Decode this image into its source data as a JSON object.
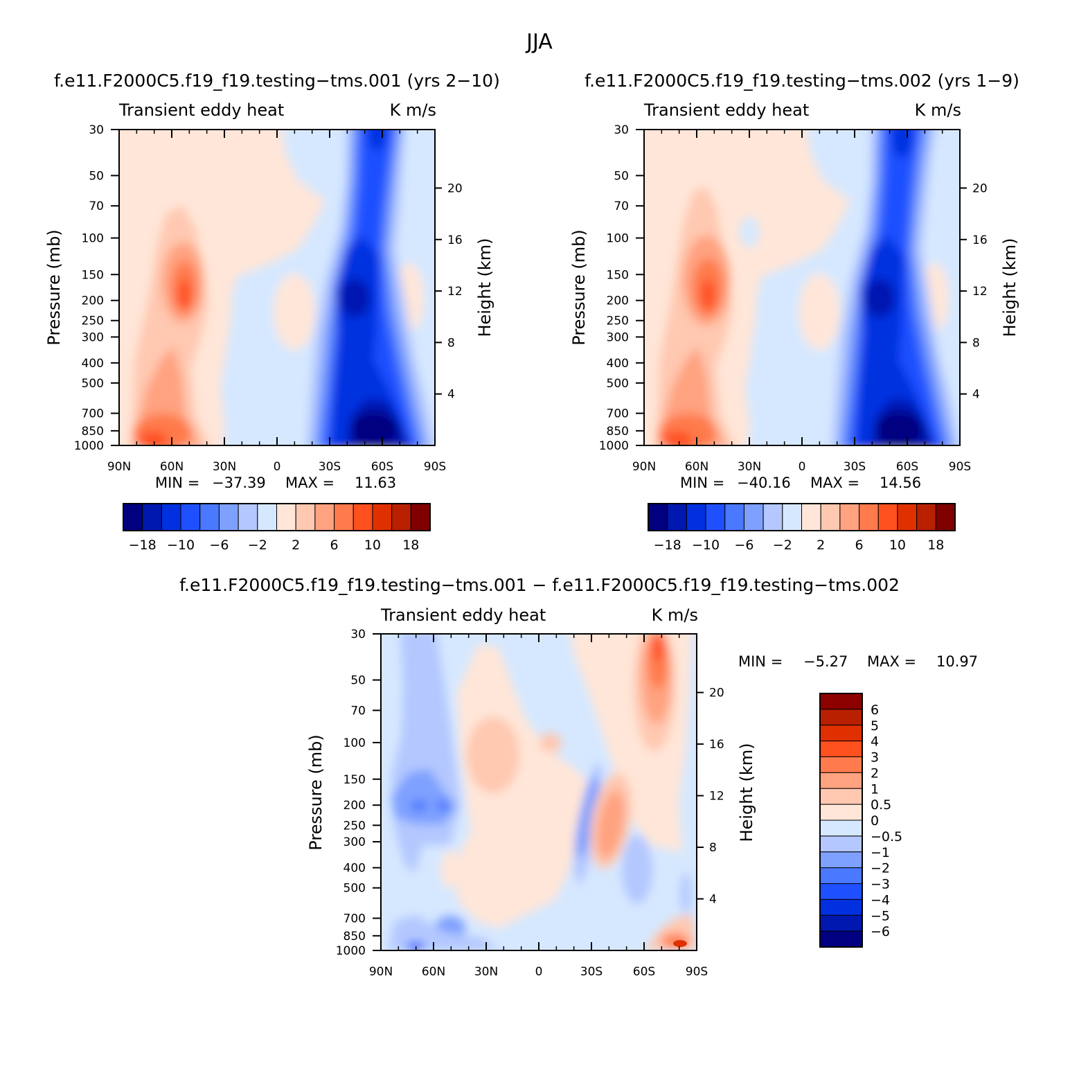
{
  "title": "JJA",
  "chart_data": [
    {
      "type": "heatmap",
      "id": "panel-a",
      "title": "f.e11.F2000C5.f19_f19.testing−tms.001 (yrs 2−10)",
      "left_label": "Transient eddy heat",
      "right_label": "K m/s",
      "xlabel": "",
      "ylabel": "Pressure (mb)",
      "y2label": "Height (km)",
      "x_ticks": [
        "90N",
        "60N",
        "30N",
        "0",
        "30S",
        "60S",
        "90S"
      ],
      "xlim": [
        90,
        -90
      ],
      "y_ticks": [
        30,
        50,
        70,
        100,
        150,
        200,
        250,
        300,
        400,
        500,
        700,
        850,
        1000
      ],
      "ylim": [
        1000,
        30
      ],
      "y_scale": "log",
      "y2_ticks": [
        4,
        8,
        12,
        16,
        20
      ],
      "stats": {
        "min_label": "MIN =",
        "min": "−37.39",
        "max_label": "MAX =",
        "max": "11.63"
      },
      "colorbar": {
        "orientation": "horizontal",
        "labels": [
          "−18",
          "−10",
          "−6",
          "−2",
          "2",
          "6",
          "10",
          "18"
        ],
        "colors": [
          "#000080",
          "#0018b0",
          "#0030e0",
          "#1e50ff",
          "#4a78ff",
          "#7ea0ff",
          "#b4c8ff",
          "#d6e8ff",
          "#ffe6d8",
          "#ffc8b0",
          "#ffa280",
          "#ff7a4c",
          "#ff5020",
          "#e03000",
          "#b82000",
          "#800000"
        ]
      }
    },
    {
      "type": "heatmap",
      "id": "panel-b",
      "title": "f.e11.F2000C5.f19_f19.testing−tms.002 (yrs 1−9)",
      "left_label": "Transient eddy heat",
      "right_label": "K m/s",
      "xlabel": "",
      "ylabel": "Pressure (mb)",
      "y2label": "Height (km)",
      "x_ticks": [
        "90N",
        "60N",
        "30N",
        "0",
        "30S",
        "60S",
        "90S"
      ],
      "xlim": [
        90,
        -90
      ],
      "y_ticks": [
        30,
        50,
        70,
        100,
        150,
        200,
        250,
        300,
        400,
        500,
        700,
        850,
        1000
      ],
      "ylim": [
        1000,
        30
      ],
      "y_scale": "log",
      "y2_ticks": [
        4,
        8,
        12,
        16,
        20
      ],
      "stats": {
        "min_label": "MIN =",
        "min": "−40.16",
        "max_label": "MAX =",
        "max": "14.56"
      },
      "colorbar": {
        "orientation": "horizontal",
        "labels": [
          "−18",
          "−10",
          "−6",
          "−2",
          "2",
          "6",
          "10",
          "18"
        ],
        "colors": [
          "#000080",
          "#0018b0",
          "#0030e0",
          "#1e50ff",
          "#4a78ff",
          "#7ea0ff",
          "#b4c8ff",
          "#d6e8ff",
          "#ffe6d8",
          "#ffc8b0",
          "#ffa280",
          "#ff7a4c",
          "#ff5020",
          "#e03000",
          "#b82000",
          "#800000"
        ]
      }
    },
    {
      "type": "heatmap",
      "id": "panel-c",
      "title": "f.e11.F2000C5.f19_f19.testing−tms.001 − f.e11.F2000C5.f19_f19.testing−tms.002",
      "left_label": "Transient eddy heat",
      "right_label": "K m/s",
      "xlabel": "",
      "ylabel": "Pressure (mb)",
      "y2label": "Height (km)",
      "x_ticks": [
        "90N",
        "60N",
        "30N",
        "0",
        "30S",
        "60S",
        "90S"
      ],
      "xlim": [
        90,
        -90
      ],
      "y_ticks": [
        30,
        50,
        70,
        100,
        150,
        200,
        250,
        300,
        400,
        500,
        700,
        850,
        1000
      ],
      "ylim": [
        1000,
        30
      ],
      "y_scale": "log",
      "y2_ticks": [
        4,
        8,
        12,
        16,
        20
      ],
      "stats": {
        "min_label": "MIN =",
        "min": "−5.27",
        "max_label": "MAX =",
        "max": "10.97"
      },
      "colorbar": {
        "orientation": "vertical",
        "labels": [
          "6",
          "5",
          "4",
          "3",
          "2",
          "1",
          "0.5",
          "0",
          "−0.5",
          "−1",
          "−2",
          "−3",
          "−4",
          "−5",
          "−6"
        ],
        "colors": [
          "#8c0000",
          "#b82000",
          "#e03000",
          "#ff5020",
          "#ff7a4c",
          "#ffa280",
          "#ffc8b0",
          "#ffe6d8",
          "#d6e8ff",
          "#b4c8ff",
          "#7ea0ff",
          "#4a78ff",
          "#1e50ff",
          "#0030e0",
          "#0018b0",
          "#000080"
        ]
      }
    }
  ]
}
